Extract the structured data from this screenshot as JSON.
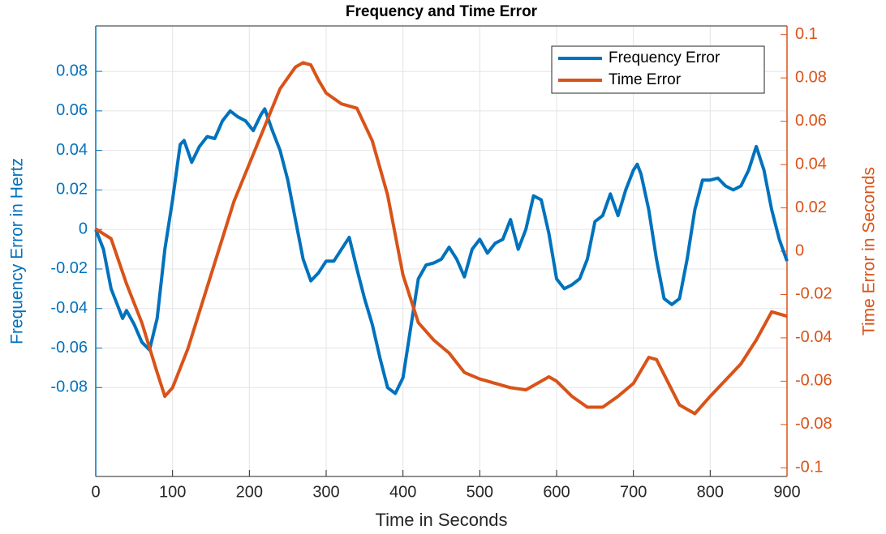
{
  "chart_data": {
    "type": "line",
    "title": "Frequency and Time Error",
    "x_label": "Time in Seconds",
    "y_label": "Frequency Error in Hertz",
    "y2_label": "Time Error in Seconds",
    "xlim": [
      0,
      900
    ],
    "xticks": [
      0,
      100,
      200,
      300,
      400,
      500,
      600,
      700,
      800,
      900
    ],
    "ylim": [
      -0.125,
      0.103
    ],
    "yticks": [
      -0.08,
      -0.06,
      -0.04,
      -0.02,
      0,
      0.02,
      0.04,
      0.06,
      0.08
    ],
    "y2lim": [
      -0.104,
      0.104
    ],
    "y2ticks": [
      -0.1,
      -0.08,
      -0.06,
      -0.04,
      -0.02,
      0,
      0.02,
      0.04,
      0.06,
      0.08,
      0.1
    ],
    "grid": true,
    "legend": "top-right",
    "series": [
      {
        "name": "Frequency Error",
        "color": "#0072bd",
        "axis": "y",
        "x": [
          0,
          10,
          20,
          30,
          35,
          40,
          50,
          60,
          70,
          80,
          90,
          100,
          110,
          115,
          125,
          135,
          145,
          155,
          165,
          175,
          185,
          195,
          205,
          215,
          220,
          230,
          240,
          250,
          260,
          270,
          280,
          290,
          300,
          310,
          320,
          330,
          340,
          350,
          360,
          370,
          380,
          390,
          400,
          410,
          420,
          430,
          440,
          450,
          460,
          470,
          480,
          490,
          500,
          510,
          520,
          530,
          540,
          550,
          560,
          570,
          580,
          590,
          600,
          610,
          620,
          630,
          640,
          650,
          660,
          670,
          680,
          690,
          700,
          705,
          710,
          720,
          730,
          740,
          750,
          760,
          770,
          780,
          790,
          800,
          810,
          820,
          830,
          840,
          850,
          860,
          870,
          880,
          890,
          900
        ],
        "values": [
          0,
          -0.01,
          -0.03,
          -0.04,
          -0.045,
          -0.041,
          -0.048,
          -0.057,
          -0.061,
          -0.045,
          -0.01,
          0.015,
          0.043,
          0.045,
          0.034,
          0.042,
          0.047,
          0.046,
          0.055,
          0.06,
          0.057,
          0.055,
          0.05,
          0.058,
          0.061,
          0.05,
          0.04,
          0.025,
          0.005,
          -0.015,
          -0.026,
          -0.022,
          -0.016,
          -0.016,
          -0.01,
          -0.004,
          -0.02,
          -0.035,
          -0.048,
          -0.065,
          -0.08,
          -0.083,
          -0.075,
          -0.05,
          -0.025,
          -0.018,
          -0.017,
          -0.015,
          -0.009,
          -0.015,
          -0.024,
          -0.01,
          -0.005,
          -0.012,
          -0.007,
          -0.005,
          0.005,
          -0.01,
          0,
          0.017,
          0.015,
          -0.002,
          -0.025,
          -0.03,
          -0.028,
          -0.025,
          -0.015,
          0.004,
          0.007,
          0.018,
          0.007,
          0.02,
          0.03,
          0.033,
          0.028,
          0.01,
          -0.015,
          -0.035,
          -0.038,
          -0.035,
          -0.015,
          0.01,
          0.025,
          0.025,
          0.026,
          0.022,
          0.02,
          0.022,
          0.03,
          0.042,
          0.03,
          0.01,
          -0.005,
          -0.016
        ]
      },
      {
        "name": "Time Error",
        "color": "#d95319",
        "axis": "y2",
        "x": [
          0,
          20,
          40,
          60,
          80,
          90,
          100,
          120,
          150,
          180,
          210,
          240,
          260,
          270,
          280,
          290,
          300,
          320,
          340,
          360,
          380,
          400,
          420,
          440,
          460,
          480,
          500,
          520,
          540,
          560,
          580,
          590,
          600,
          620,
          640,
          660,
          680,
          700,
          720,
          730,
          760,
          780,
          800,
          840,
          860,
          880,
          900
        ],
        "values": [
          0.0103,
          0.0058,
          -0.015,
          -0.033,
          -0.056,
          -0.067,
          -0.063,
          -0.045,
          -0.011,
          0.023,
          0.049,
          0.075,
          0.085,
          0.087,
          0.086,
          0.079,
          0.073,
          0.068,
          0.066,
          0.051,
          0.026,
          -0.011,
          -0.033,
          -0.041,
          -0.047,
          -0.056,
          -0.059,
          -0.061,
          -0.063,
          -0.064,
          -0.06,
          -0.058,
          -0.06,
          -0.067,
          -0.072,
          -0.072,
          -0.067,
          -0.061,
          -0.049,
          -0.05,
          -0.071,
          -0.075,
          -0.067,
          -0.052,
          -0.041,
          -0.028,
          -0.03
        ]
      }
    ]
  }
}
